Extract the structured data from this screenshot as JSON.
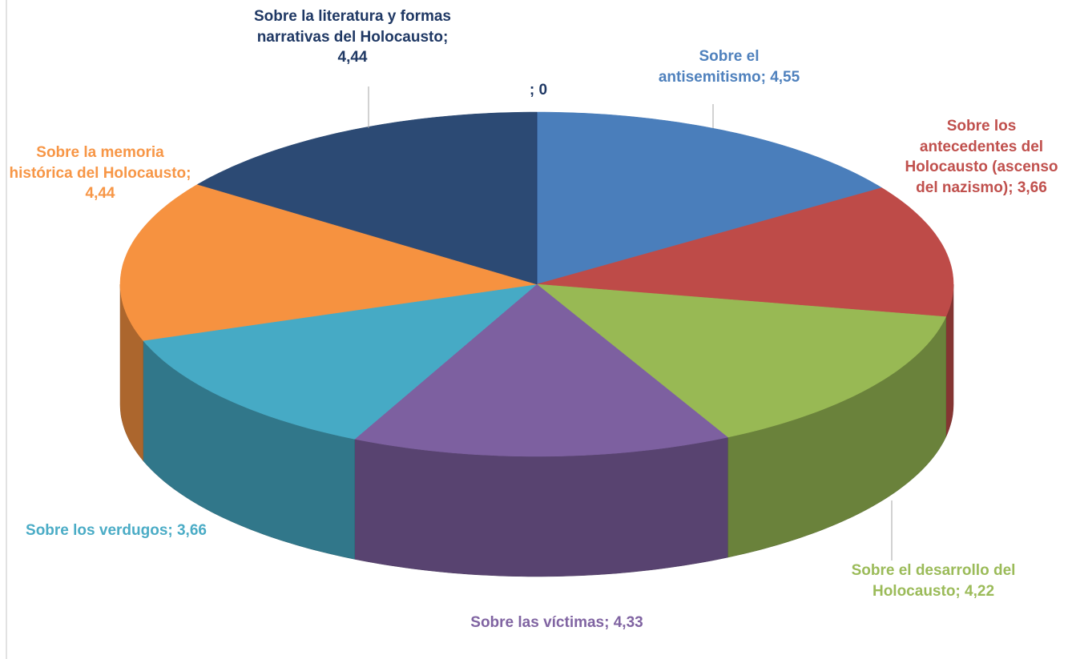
{
  "chart_data": {
    "type": "pie3d",
    "values": [
      4.55,
      3.66,
      4.22,
      4.33,
      3.66,
      4.44,
      4.44,
      0
    ],
    "value_labels": [
      "Sobre el antisemitismo; 4,55",
      "Sobre los antecedentes del Holocausto (ascenso del nazismo); 3,66",
      "Sobre el desarrollo del Holocausto; 4,22",
      "Sobre las víctimas; 4,33",
      "Sobre los verdugos; 3,66",
      "Sobre la memoria histórica del Holocausto; 4,44",
      "Sobre la literatura y formas narrativas del Holocausto; 4,44",
      "; 0"
    ],
    "colors": [
      "#4a7ebb",
      "#be4b48",
      "#98b954",
      "#7d60a0",
      "#46aac5",
      "#f69240",
      "#2c4a74",
      "#1f3864"
    ]
  }
}
